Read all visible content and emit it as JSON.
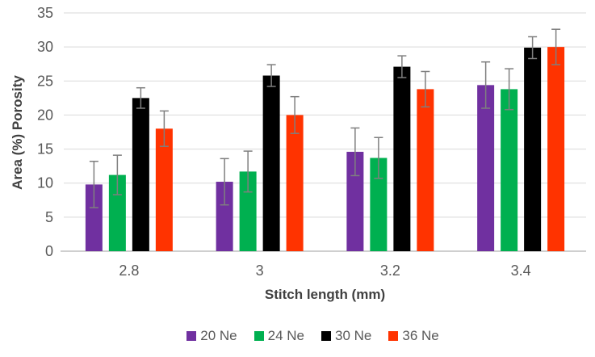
{
  "figure": {
    "background": "#FFFFFF"
  },
  "chart_data": {
    "type": "bar",
    "title": "",
    "xlabel": "Stitch length (mm)",
    "ylabel": "Area (%) Porosity",
    "categories": [
      "2.8",
      "3",
      "3.2",
      "3.4"
    ],
    "series": [
      {
        "name": "20 Ne",
        "color": "#7030A0",
        "values": [
          9.8,
          10.2,
          14.6,
          24.4
        ],
        "errors": [
          3.4,
          3.4,
          3.5,
          3.4
        ]
      },
      {
        "name": "24 Ne",
        "color": "#00B050",
        "values": [
          11.2,
          11.7,
          13.7,
          23.8
        ],
        "errors": [
          2.9,
          3.0,
          3.0,
          3.0
        ]
      },
      {
        "name": "30 Ne",
        "color": "#000000",
        "values": [
          22.5,
          25.8,
          27.1,
          29.9
        ],
        "errors": [
          1.5,
          1.6,
          1.6,
          1.6
        ]
      },
      {
        "name": "36 Ne",
        "color": "#FF3300",
        "values": [
          18.0,
          20.0,
          23.8,
          30.0
        ],
        "errors": [
          2.6,
          2.7,
          2.6,
          2.6
        ]
      }
    ],
    "ylim": [
      0,
      35
    ],
    "yticks": [
      0,
      5,
      10,
      15,
      20,
      25,
      30,
      35
    ],
    "ytick_step": 5,
    "grid": true,
    "error_bars": true,
    "legend_position": "bottom",
    "colors": {
      "gridline": "#D9D9D9",
      "axis_line": "#BFBFBF",
      "tick_label": "#595959",
      "axis_title": "#404040",
      "legend_label": "#595959",
      "error_bar": "#7F7F7F"
    }
  }
}
